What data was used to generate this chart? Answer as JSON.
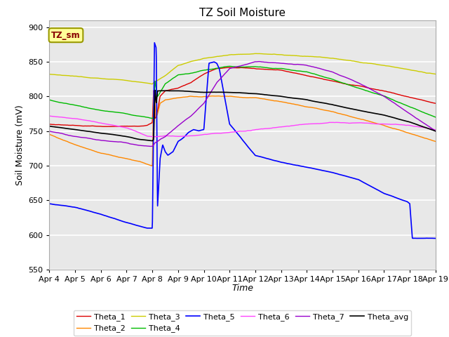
{
  "title": "TZ Soil Moisture",
  "xlabel": "Time",
  "ylabel": "Soil Moisture (mV)",
  "ylim": [
    550,
    910
  ],
  "yticks": [
    550,
    600,
    650,
    700,
    750,
    800,
    850,
    900
  ],
  "legend_label": "TZ_sm",
  "series_colors": {
    "Theta_1": "#dd0000",
    "Theta_2": "#ff8800",
    "Theta_3": "#cccc00",
    "Theta_4": "#00bb00",
    "Theta_5": "#0000ff",
    "Theta_6": "#ff44ff",
    "Theta_7": "#9900cc",
    "Theta_avg": "#000000"
  },
  "n_points": 1500
}
